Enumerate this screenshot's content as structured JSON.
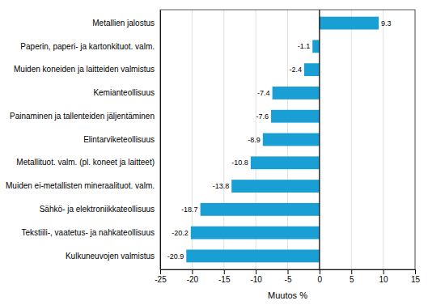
{
  "chart_data": {
    "type": "bar",
    "orientation": "horizontal",
    "categories": [
      "Kulkuneuvojen valmistus",
      "Tekstiili-, vaatetus- ja nahkateollisuus",
      "Sähkö- ja elektroniikkateollisuus",
      "Muiden ei-metallisten mineraalituot. valm.",
      "Metallituot. valm. (pl. koneet ja laitteet)",
      "Elintarviketeollisuus",
      "Painaminen ja tallenteiden jäljentäminen",
      "Kemianteollisuus",
      "Muiden koneiden ja laitteiden valmistus",
      "Paperin, paperi- ja kartonkituot. valm.",
      "Metallien jalostus"
    ],
    "values": [
      -20.9,
      -20.2,
      -18.7,
      -13.8,
      -10.8,
      -8.9,
      -7.6,
      -7.4,
      -2.4,
      -1.1,
      9.3
    ],
    "color": "#1a9fd4",
    "xlabel": "Muutos %",
    "xlim": [
      -25,
      15
    ],
    "xticks": [
      -25,
      -20,
      -15,
      -10,
      -5,
      0,
      5,
      10,
      15
    ],
    "grid": true,
    "data_labels": true
  }
}
